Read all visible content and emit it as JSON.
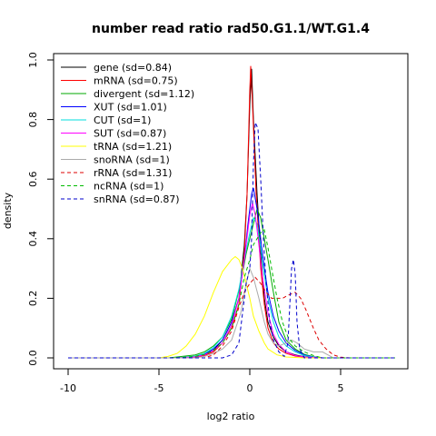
{
  "chart_data": {
    "type": "line",
    "title": "number read ratio rad50.G1.1/WT.G1.4",
    "xlabel": "log2 ratio",
    "ylabel": "density",
    "xlim": [
      -10,
      8
    ],
    "ylim": [
      0,
      1.0
    ],
    "xticks": [
      -10,
      -5,
      0,
      5
    ],
    "xtick_labels": [
      "-10",
      "-5",
      "0",
      "5"
    ],
    "yticks": [
      0.0,
      0.2,
      0.4,
      0.6,
      0.8,
      1.0
    ],
    "ytick_labels": [
      "0.0",
      "0.2",
      "0.4",
      "0.6",
      "0.8",
      "1.0"
    ],
    "grid": false,
    "legend_position": "top-left",
    "series": [
      {
        "name": "gene (sd=0.84)",
        "color": "#000000",
        "dash": "solid",
        "points": [
          [
            -10,
            0
          ],
          [
            -4,
            0
          ],
          [
            -3,
            0.004
          ],
          [
            -2.5,
            0.01
          ],
          [
            -2,
            0.025
          ],
          [
            -1.5,
            0.06
          ],
          [
            -1,
            0.12
          ],
          [
            -0.6,
            0.2
          ],
          [
            -0.3,
            0.38
          ],
          [
            -0.15,
            0.55
          ],
          [
            0,
            0.85
          ],
          [
            0.1,
            0.97
          ],
          [
            0.2,
            0.8
          ],
          [
            0.4,
            0.55
          ],
          [
            0.6,
            0.35
          ],
          [
            0.8,
            0.2
          ],
          [
            1,
            0.12
          ],
          [
            1.3,
            0.07
          ],
          [
            1.6,
            0.04
          ],
          [
            2,
            0.02
          ],
          [
            2.5,
            0.01
          ],
          [
            3,
            0.004
          ],
          [
            4,
            0
          ],
          [
            8,
            0
          ]
        ]
      },
      {
        "name": "mRNA (sd=0.75)",
        "color": "#ff0000",
        "dash": "solid",
        "points": [
          [
            -10,
            0
          ],
          [
            -4,
            0
          ],
          [
            -3,
            0.003
          ],
          [
            -2.5,
            0.008
          ],
          [
            -2,
            0.02
          ],
          [
            -1.5,
            0.05
          ],
          [
            -1,
            0.1
          ],
          [
            -0.6,
            0.18
          ],
          [
            -0.3,
            0.35
          ],
          [
            -0.15,
            0.55
          ],
          [
            0,
            0.9
          ],
          [
            0.05,
            0.98
          ],
          [
            0.15,
            0.85
          ],
          [
            0.35,
            0.55
          ],
          [
            0.6,
            0.3
          ],
          [
            0.8,
            0.18
          ],
          [
            1,
            0.1
          ],
          [
            1.3,
            0.05
          ],
          [
            1.6,
            0.03
          ],
          [
            2,
            0.015
          ],
          [
            2.5,
            0.006
          ],
          [
            3,
            0.002
          ],
          [
            4,
            0
          ],
          [
            8,
            0
          ]
        ]
      },
      {
        "name": "divergent (sd=1.12)",
        "color": "#00aa00",
        "dash": "solid",
        "points": [
          [
            -10,
            0
          ],
          [
            -4.5,
            0
          ],
          [
            -4,
            0.003
          ],
          [
            -3,
            0.01
          ],
          [
            -2.5,
            0.02
          ],
          [
            -2,
            0.04
          ],
          [
            -1.5,
            0.07
          ],
          [
            -1,
            0.13
          ],
          [
            -0.5,
            0.25
          ],
          [
            -0.2,
            0.35
          ],
          [
            0,
            0.4
          ],
          [
            0.2,
            0.45
          ],
          [
            0.4,
            0.5
          ],
          [
            0.6,
            0.47
          ],
          [
            0.8,
            0.4
          ],
          [
            1,
            0.33
          ],
          [
            1.3,
            0.22
          ],
          [
            1.6,
            0.12
          ],
          [
            2,
            0.06
          ],
          [
            2.5,
            0.03
          ],
          [
            3,
            0.012
          ],
          [
            3.5,
            0.004
          ],
          [
            4,
            0
          ],
          [
            8,
            0
          ]
        ]
      },
      {
        "name": "XUT (sd=1.01)",
        "color": "#0000ff",
        "dash": "solid",
        "points": [
          [
            -10,
            0
          ],
          [
            -4,
            0
          ],
          [
            -3,
            0.005
          ],
          [
            -2.5,
            0.012
          ],
          [
            -2,
            0.03
          ],
          [
            -1.5,
            0.06
          ],
          [
            -1,
            0.12
          ],
          [
            -0.6,
            0.2
          ],
          [
            -0.3,
            0.33
          ],
          [
            -0.1,
            0.45
          ],
          [
            0.1,
            0.55
          ],
          [
            0.2,
            0.57
          ],
          [
            0.4,
            0.5
          ],
          [
            0.6,
            0.4
          ],
          [
            0.8,
            0.3
          ],
          [
            1,
            0.22
          ],
          [
            1.3,
            0.14
          ],
          [
            1.6,
            0.09
          ],
          [
            2,
            0.05
          ],
          [
            2.5,
            0.025
          ],
          [
            3,
            0.01
          ],
          [
            3.5,
            0.003
          ],
          [
            4,
            0
          ],
          [
            8,
            0
          ]
        ]
      },
      {
        "name": "CUT (sd=1)",
        "color": "#00dddd",
        "dash": "solid",
        "points": [
          [
            -10,
            0
          ],
          [
            -4,
            0
          ],
          [
            -3,
            0.006
          ],
          [
            -2.5,
            0.015
          ],
          [
            -2,
            0.035
          ],
          [
            -1.5,
            0.07
          ],
          [
            -1,
            0.14
          ],
          [
            -0.6,
            0.23
          ],
          [
            -0.3,
            0.33
          ],
          [
            0,
            0.42
          ],
          [
            0.2,
            0.47
          ],
          [
            0.4,
            0.45
          ],
          [
            0.6,
            0.37
          ],
          [
            0.8,
            0.28
          ],
          [
            1,
            0.2
          ],
          [
            1.3,
            0.12
          ],
          [
            1.6,
            0.07
          ],
          [
            2,
            0.04
          ],
          [
            2.5,
            0.02
          ],
          [
            3,
            0.008
          ],
          [
            3.5,
            0.002
          ],
          [
            4,
            0
          ],
          [
            8,
            0
          ]
        ]
      },
      {
        "name": "SUT (sd=0.87)",
        "color": "#ff00ff",
        "dash": "solid",
        "points": [
          [
            -10,
            0
          ],
          [
            -4,
            0
          ],
          [
            -3,
            0.004
          ],
          [
            -2.5,
            0.01
          ],
          [
            -2,
            0.025
          ],
          [
            -1.5,
            0.05
          ],
          [
            -1,
            0.11
          ],
          [
            -0.6,
            0.2
          ],
          [
            -0.3,
            0.33
          ],
          [
            0,
            0.48
          ],
          [
            0.15,
            0.52
          ],
          [
            0.3,
            0.48
          ],
          [
            0.5,
            0.38
          ],
          [
            0.7,
            0.27
          ],
          [
            1,
            0.15
          ],
          [
            1.3,
            0.08
          ],
          [
            1.6,
            0.045
          ],
          [
            2,
            0.02
          ],
          [
            2.5,
            0.008
          ],
          [
            3,
            0.003
          ],
          [
            4,
            0
          ],
          [
            8,
            0
          ]
        ]
      },
      {
        "name": "tRNA (sd=1.21)",
        "color": "#ffff00",
        "dash": "solid",
        "points": [
          [
            -10,
            0
          ],
          [
            -5,
            0
          ],
          [
            -4.5,
            0.005
          ],
          [
            -4,
            0.015
          ],
          [
            -3.5,
            0.04
          ],
          [
            -3,
            0.08
          ],
          [
            -2.5,
            0.14
          ],
          [
            -2,
            0.22
          ],
          [
            -1.5,
            0.29
          ],
          [
            -1,
            0.33
          ],
          [
            -0.8,
            0.34
          ],
          [
            -0.6,
            0.33
          ],
          [
            -0.4,
            0.3
          ],
          [
            -0.2,
            0.25
          ],
          [
            0,
            0.2
          ],
          [
            0.2,
            0.14
          ],
          [
            0.5,
            0.09
          ],
          [
            0.8,
            0.05
          ],
          [
            1,
            0.03
          ],
          [
            1.5,
            0.01
          ],
          [
            2,
            0.003
          ],
          [
            3,
            0
          ],
          [
            8,
            0
          ]
        ]
      },
      {
        "name": "snoRNA (sd=1)",
        "color": "#aaaaaa",
        "dash": "solid",
        "points": [
          [
            -10,
            0
          ],
          [
            -3,
            0
          ],
          [
            -2.5,
            0.005
          ],
          [
            -2,
            0.015
          ],
          [
            -1.5,
            0.03
          ],
          [
            -1,
            0.06
          ],
          [
            -0.5,
            0.15
          ],
          [
            -0.2,
            0.25
          ],
          [
            0,
            0.3
          ],
          [
            0.2,
            0.27
          ],
          [
            0.5,
            0.2
          ],
          [
            0.8,
            0.12
          ],
          [
            1,
            0.08
          ],
          [
            1.3,
            0.05
          ],
          [
            1.6,
            0.04
          ],
          [
            2,
            0.05
          ],
          [
            2.3,
            0.06
          ],
          [
            2.6,
            0.05
          ],
          [
            3,
            0.03
          ],
          [
            3.5,
            0.02
          ],
          [
            4,
            0.02
          ],
          [
            4.3,
            0.01
          ],
          [
            4.6,
            0
          ],
          [
            8,
            0
          ]
        ]
      },
      {
        "name": "rRNA (sd=1.31)",
        "color": "#dd0000",
        "dash": "dashed",
        "points": [
          [
            -10,
            0
          ],
          [
            -2.5,
            0
          ],
          [
            -2,
            0.01
          ],
          [
            -1.5,
            0.04
          ],
          [
            -1,
            0.09
          ],
          [
            -0.6,
            0.17
          ],
          [
            -0.3,
            0.22
          ],
          [
            0,
            0.25
          ],
          [
            0.3,
            0.27
          ],
          [
            0.6,
            0.25
          ],
          [
            0.9,
            0.22
          ],
          [
            1.2,
            0.2
          ],
          [
            1.5,
            0.2
          ],
          [
            1.8,
            0.2
          ],
          [
            2.1,
            0.21
          ],
          [
            2.5,
            0.22
          ],
          [
            2.8,
            0.2
          ],
          [
            3.1,
            0.16
          ],
          [
            3.5,
            0.1
          ],
          [
            3.8,
            0.06
          ],
          [
            4.2,
            0.03
          ],
          [
            4.6,
            0.01
          ],
          [
            5,
            0.002
          ],
          [
            5.5,
            0
          ],
          [
            8,
            0
          ]
        ]
      },
      {
        "name": "ncRNA (sd=1)",
        "color": "#00bb00",
        "dash": "dashed",
        "points": [
          [
            -10,
            0
          ],
          [
            -4,
            0
          ],
          [
            -3,
            0.005
          ],
          [
            -2.5,
            0.012
          ],
          [
            -2,
            0.025
          ],
          [
            -1.5,
            0.05
          ],
          [
            -1,
            0.1
          ],
          [
            -0.6,
            0.18
          ],
          [
            -0.3,
            0.27
          ],
          [
            0,
            0.33
          ],
          [
            0.2,
            0.38
          ],
          [
            0.4,
            0.4
          ],
          [
            0.6,
            0.42
          ],
          [
            0.8,
            0.43
          ],
          [
            1,
            0.37
          ],
          [
            1.2,
            0.3
          ],
          [
            1.5,
            0.2
          ],
          [
            1.8,
            0.12
          ],
          [
            2.1,
            0.07
          ],
          [
            2.5,
            0.04
          ],
          [
            3,
            0.02
          ],
          [
            3.5,
            0.008
          ],
          [
            4,
            0
          ],
          [
            8,
            0
          ]
        ]
      },
      {
        "name": "snRNA (sd=0.87)",
        "color": "#0000cc",
        "dash": "dashed",
        "points": [
          [
            -10,
            0
          ],
          [
            -1.5,
            0
          ],
          [
            -1,
            0.01
          ],
          [
            -0.6,
            0.05
          ],
          [
            -0.4,
            0.15
          ],
          [
            -0.2,
            0.25
          ],
          [
            0,
            0.3
          ],
          [
            0.1,
            0.4
          ],
          [
            0.2,
            0.65
          ],
          [
            0.3,
            0.79
          ],
          [
            0.45,
            0.77
          ],
          [
            0.6,
            0.6
          ],
          [
            0.75,
            0.4
          ],
          [
            0.9,
            0.25
          ],
          [
            1.1,
            0.12
          ],
          [
            1.3,
            0.06
          ],
          [
            1.6,
            0.02
          ],
          [
            1.9,
            0.005
          ],
          [
            2.1,
            0.05
          ],
          [
            2.3,
            0.3
          ],
          [
            2.4,
            0.33
          ],
          [
            2.5,
            0.28
          ],
          [
            2.6,
            0.12
          ],
          [
            2.75,
            0.03
          ],
          [
            3,
            0
          ],
          [
            8,
            0
          ]
        ]
      }
    ]
  }
}
